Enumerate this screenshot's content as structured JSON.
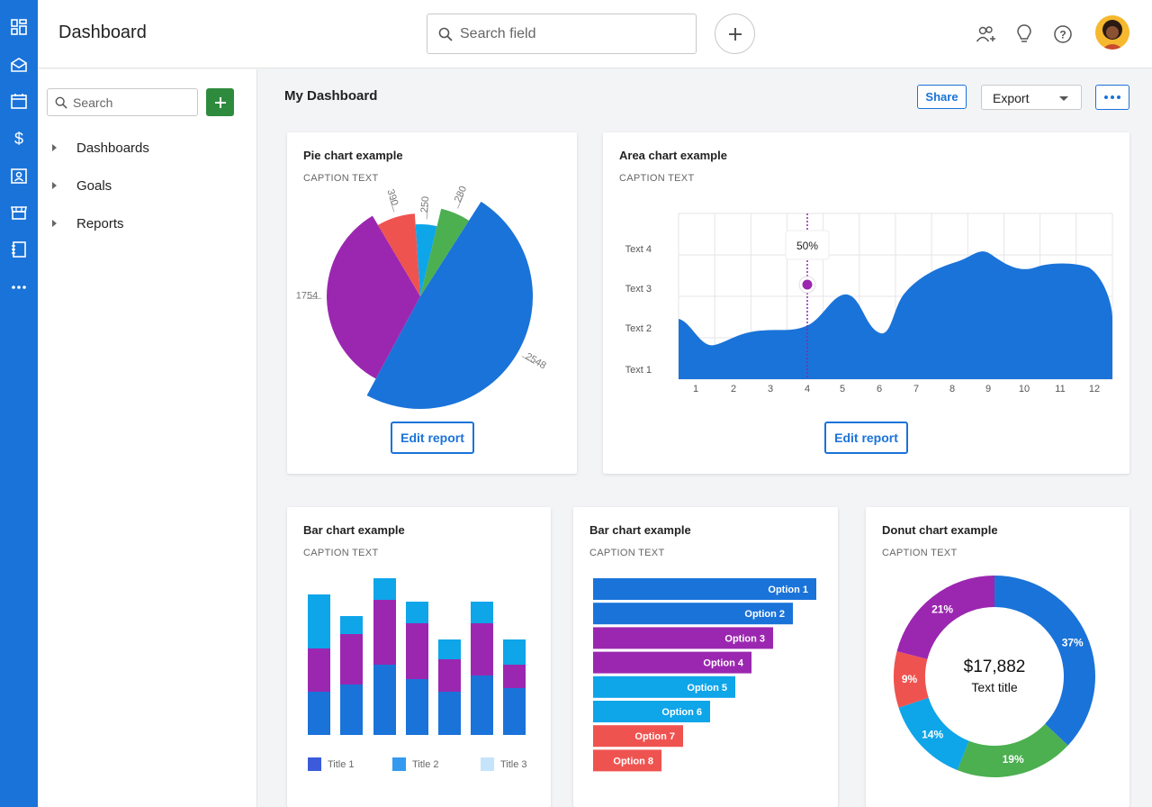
{
  "header": {
    "title": "Dashboard",
    "search_placeholder": "Search field"
  },
  "sidebar": {
    "search_placeholder": "Search",
    "items": [
      {
        "label": "Dashboards"
      },
      {
        "label": "Goals"
      },
      {
        "label": "Reports"
      }
    ]
  },
  "main": {
    "title": "My Dashboard",
    "share_label": "Share",
    "export_label": "Export"
  },
  "colors": {
    "rail": "#1a73d9",
    "blue": "#1a73d9",
    "light_blue": "#0ea5e9",
    "purple": "#9b27b0",
    "green": "#4caf50",
    "red": "#ef5350",
    "add_green": "#2e8b3e"
  },
  "cards": {
    "pie": {
      "title": "Pie chart example",
      "caption": "CAPTION TEXT",
      "button": "Edit report"
    },
    "area": {
      "title": "Area chart example",
      "caption": "CAPTION TEXT",
      "button": "Edit report",
      "tooltip": "50%"
    },
    "bar_v": {
      "title": "Bar chart example",
      "caption": "CAPTION TEXT"
    },
    "bar_h": {
      "title": "Bar chart example",
      "caption": "CAPTION TEXT"
    },
    "donut": {
      "title": "Donut chart example",
      "caption": "CAPTION TEXT",
      "center_value": "$17,882",
      "center_label": "Text title"
    }
  },
  "chart_data": [
    {
      "type": "pie",
      "slices": [
        {
          "label": "2548",
          "value": 2548,
          "color": "#1a73d9"
        },
        {
          "label": "1754",
          "value": 1754,
          "color": "#9b27b0"
        },
        {
          "label": "390",
          "value": 390,
          "color": "#ef5350"
        },
        {
          "label": "250",
          "value": 250,
          "color": "#0ea5e9"
        },
        {
          "label": "280",
          "value": 280,
          "color": "#4caf50"
        }
      ]
    },
    {
      "type": "area",
      "x": [
        1,
        2,
        3,
        4,
        5,
        6,
        7,
        8,
        9,
        10,
        11,
        12
      ],
      "ytick_labels": [
        "Text 1",
        "Text 2",
        "Text 3",
        "Text 4"
      ],
      "grid": true,
      "marker_x": 4,
      "marker_label": "50%"
    },
    {
      "type": "bar",
      "stacked": true,
      "legend": [
        "Title 1",
        "Title 2",
        "Title 3"
      ],
      "legend_colors": [
        "#3b5bdb",
        "#339af0",
        "#c5e4fb"
      ],
      "series": [
        {
          "color": "#1a73d9",
          "values": [
            48,
            56,
            78,
            62,
            48,
            66,
            52
          ]
        },
        {
          "color": "#9b27b0",
          "values": [
            48,
            56,
            72,
            62,
            36,
            58,
            26
          ]
        },
        {
          "color": "#0ea5e9",
          "values": [
            60,
            20,
            24,
            24,
            22,
            24,
            28
          ]
        }
      ]
    },
    {
      "type": "bar",
      "orientation": "horizontal",
      "categories": [
        "Option 1",
        "Option 2",
        "Option 3",
        "Option 4",
        "Option 5",
        "Option 6",
        "Option 7",
        "Option 8"
      ],
      "values": [
        248,
        222,
        200,
        176,
        158,
        130,
        100,
        76
      ],
      "colors": [
        "#1a73d9",
        "#1a73d9",
        "#9b27b0",
        "#9b27b0",
        "#0ea5e9",
        "#0ea5e9",
        "#ef5350",
        "#ef5350"
      ]
    },
    {
      "type": "pie",
      "donut": true,
      "slices": [
        {
          "label": "37%",
          "value": 37,
          "color": "#1a73d9"
        },
        {
          "label": "19%",
          "value": 19,
          "color": "#4caf50"
        },
        {
          "label": "14%",
          "value": 14,
          "color": "#0ea5e9"
        },
        {
          "label": "9%",
          "value": 9,
          "color": "#ef5350"
        },
        {
          "label": "21%",
          "value": 21,
          "color": "#9b27b0"
        }
      ]
    }
  ]
}
